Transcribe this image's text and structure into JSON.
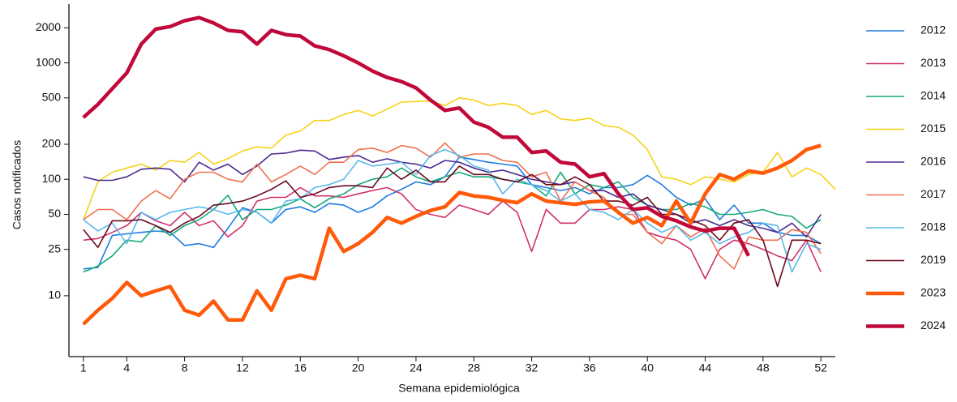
{
  "chart_data": {
    "type": "line",
    "y_label": "Casos notificados",
    "x_label": "Semana epidemiológica",
    "x": [
      1,
      2,
      3,
      4,
      5,
      6,
      7,
      8,
      9,
      10,
      11,
      12,
      13,
      14,
      15,
      16,
      17,
      18,
      19,
      20,
      21,
      22,
      23,
      24,
      25,
      26,
      27,
      28,
      29,
      30,
      31,
      32,
      33,
      34,
      35,
      36,
      37,
      38,
      39,
      40,
      41,
      42,
      43,
      44,
      45,
      46,
      47,
      48,
      49,
      50,
      51,
      52,
      53
    ],
    "xlim": [
      0,
      53
    ],
    "xticks": [
      1,
      4,
      8,
      12,
      16,
      20,
      24,
      28,
      32,
      36,
      40,
      44,
      48,
      52
    ],
    "ylim": [
      3,
      3200
    ],
    "log_y": true,
    "yticks": [
      10,
      25,
      50,
      100,
      200,
      500,
      1000,
      2000
    ],
    "legend": "right",
    "series": [
      {
        "name": "2012",
        "color": "#1f7be0",
        "line_width": 1.6,
        "values": [
          17,
          17.5,
          33,
          34,
          35,
          36,
          35,
          27,
          28,
          26,
          38,
          57,
          52,
          42,
          55,
          58,
          52,
          62,
          60,
          52,
          58,
          72,
          82,
          95,
          90,
          105,
          155,
          148,
          140,
          135,
          130,
          90,
          85,
          80,
          85,
          75,
          85,
          85,
          90,
          108,
          90,
          70,
          60,
          68,
          45,
          60,
          42,
          42,
          35,
          33,
          33,
          28,
          null
        ]
      },
      {
        "name": "2013",
        "color": "#d0306e",
        "line_width": 1.6,
        "values": [
          30,
          31,
          35,
          40,
          52,
          44,
          40,
          52,
          40,
          44,
          32,
          40,
          65,
          70,
          70,
          85,
          72,
          72,
          70,
          75,
          80,
          85,
          75,
          55,
          50,
          47,
          60,
          55,
          50,
          65,
          52,
          24,
          55,
          42,
          42,
          55,
          55,
          58,
          55,
          35,
          32,
          30,
          25,
          14,
          25,
          30,
          28,
          25,
          22,
          20,
          30,
          16,
          null
        ]
      },
      {
        "name": "2014",
        "color": "#16a878",
        "line_width": 1.6,
        "values": [
          16,
          18,
          22,
          30,
          29,
          40,
          33,
          40,
          45,
          55,
          73,
          45,
          55,
          55,
          60,
          68,
          57,
          68,
          75,
          90,
          100,
          105,
          125,
          105,
          95,
          105,
          115,
          105,
          105,
          100,
          95,
          90,
          72,
          115,
          75,
          90,
          85,
          95,
          70,
          60,
          55,
          55,
          62,
          58,
          50,
          50,
          52,
          55,
          50,
          48,
          38,
          45,
          null
        ]
      },
      {
        "name": "2015",
        "color": "#f5d31a",
        "line_width": 1.6,
        "values": [
          45,
          95,
          115,
          125,
          135,
          120,
          145,
          140,
          170,
          135,
          150,
          175,
          190,
          185,
          240,
          260,
          320,
          320,
          360,
          390,
          350,
          400,
          460,
          465,
          470,
          430,
          500,
          480,
          430,
          450,
          430,
          360,
          390,
          330,
          320,
          335,
          290,
          280,
          240,
          180,
          105,
          100,
          90,
          105,
          100,
          95,
          110,
          115,
          170,
          105,
          125,
          110,
          82
        ]
      },
      {
        "name": "2016",
        "color": "#4b2a8f",
        "line_width": 1.6,
        "values": [
          105,
          98,
          98,
          105,
          122,
          125,
          122,
          95,
          140,
          120,
          135,
          110,
          130,
          165,
          168,
          178,
          175,
          148,
          155,
          160,
          140,
          150,
          140,
          135,
          125,
          145,
          140,
          125,
          115,
          120,
          110,
          100,
          95,
          90,
          95,
          80,
          80,
          70,
          75,
          60,
          55,
          50,
          42,
          45,
          40,
          45,
          40,
          38,
          35,
          42,
          32,
          50,
          null
        ]
      },
      {
        "name": "2017",
        "color": "#f0704e",
        "line_width": 1.6,
        "values": [
          45,
          55,
          55,
          45,
          65,
          80,
          68,
          100,
          115,
          115,
          100,
          95,
          135,
          95,
          110,
          130,
          110,
          140,
          140,
          180,
          185,
          170,
          195,
          185,
          155,
          205,
          155,
          165,
          165,
          145,
          140,
          105,
          115,
          65,
          95,
          80,
          70,
          50,
          50,
          35,
          28,
          40,
          32,
          38,
          22,
          17,
          32,
          30,
          30,
          37,
          35,
          23,
          null
        ]
      },
      {
        "name": "2018",
        "color": "#5ab8ec",
        "line_width": 1.6,
        "values": [
          45,
          36,
          42,
          28,
          52,
          45,
          52,
          55,
          58,
          55,
          50,
          55,
          52,
          42,
          65,
          68,
          85,
          90,
          100,
          145,
          130,
          135,
          140,
          110,
          160,
          180,
          160,
          130,
          120,
          75,
          100,
          90,
          80,
          65,
          75,
          55,
          52,
          45,
          55,
          42,
          35,
          40,
          30,
          35,
          28,
          32,
          35,
          42,
          40,
          16,
          28,
          25,
          null
        ]
      },
      {
        "name": "2019",
        "color": "#6b0a1e",
        "line_width": 1.6,
        "values": [
          37,
          26,
          44,
          44,
          45,
          40,
          35,
          42,
          48,
          60,
          62,
          65,
          72,
          82,
          97,
          70,
          75,
          85,
          88,
          88,
          85,
          125,
          100,
          120,
          95,
          95,
          130,
          110,
          110,
          100,
          95,
          110,
          90,
          90,
          105,
          90,
          65,
          65,
          60,
          70,
          50,
          50,
          45,
          40,
          30,
          42,
          45,
          30,
          12,
          30,
          30,
          28,
          null
        ]
      },
      {
        "name": "2023",
        "color": "#ff5a0a",
        "line_width": 4.5,
        "values": [
          5.7,
          7.5,
          9.5,
          13,
          10,
          11,
          12,
          7.5,
          6.8,
          9,
          6.2,
          6.2,
          11,
          7.5,
          14,
          15,
          14,
          38,
          24,
          28,
          35,
          47,
          42,
          48,
          54,
          58,
          77,
          72,
          70,
          66,
          63,
          75,
          65,
          63,
          61,
          64,
          65,
          52,
          42,
          47,
          40,
          65,
          42,
          75,
          110,
          100,
          118,
          113,
          125,
          145,
          180,
          195,
          null
        ]
      },
      {
        "name": "2024",
        "color": "#c0083a",
        "line_width": 4.5,
        "values": [
          340,
          440,
          600,
          820,
          1450,
          1950,
          2050,
          2300,
          2450,
          2200,
          1900,
          1850,
          1450,
          1900,
          1750,
          1700,
          1400,
          1300,
          1150,
          1000,
          850,
          750,
          690,
          610,
          480,
          390,
          410,
          310,
          280,
          230,
          230,
          170,
          175,
          140,
          135,
          105,
          112,
          75,
          55,
          57,
          48,
          44,
          39,
          36,
          38,
          38,
          22,
          null,
          null,
          null,
          null,
          null,
          null
        ]
      }
    ]
  }
}
